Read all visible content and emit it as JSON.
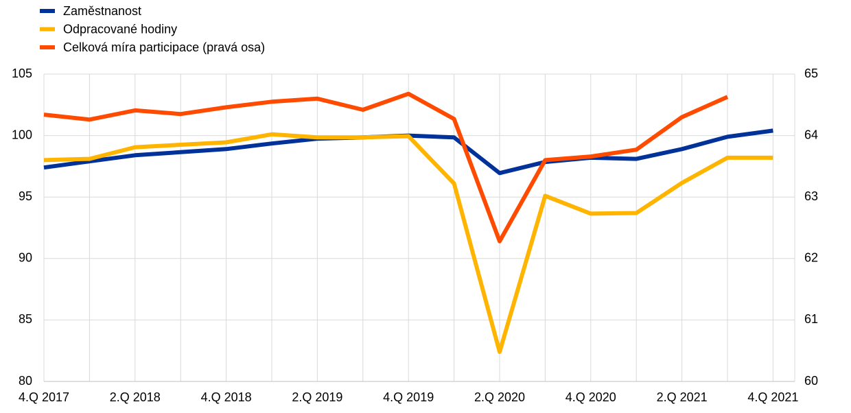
{
  "chart_data": {
    "type": "line",
    "categories": [
      "4.Q 2017",
      null,
      "2.Q 2018",
      null,
      "4.Q 2018",
      null,
      "2.Q 2019",
      null,
      "4.Q 2019",
      null,
      "2.Q 2020",
      null,
      "4.Q 2020",
      null,
      "2.Q 2021",
      null,
      "4.Q 2021"
    ],
    "series": [
      {
        "name": "Zaměstnanost",
        "color": "#003299",
        "values": [
          97.4,
          97.9,
          98.4,
          98.65,
          98.9,
          99.35,
          99.75,
          99.85,
          100.0,
          99.85,
          96.95,
          97.85,
          98.2,
          98.1,
          98.9,
          99.9,
          100.4
        ]
      },
      {
        "name": "Odpracované hodiny",
        "color": "#ffb400",
        "values": [
          98.0,
          98.1,
          99.05,
          99.25,
          99.45,
          100.1,
          99.85,
          99.85,
          99.95,
          96.1,
          82.4,
          95.1,
          93.65,
          93.7,
          96.15,
          98.2,
          98.2
        ]
      },
      {
        "name": "Celková míra participace (pravá osa)",
        "color": "#ff4b00",
        "axis": "y2",
        "values": [
          64.34,
          64.26,
          64.41,
          64.35,
          64.46,
          64.55,
          64.6,
          64.42,
          64.68,
          64.27,
          62.28,
          63.6,
          63.66,
          63.77,
          64.3,
          64.63,
          null
        ]
      }
    ],
    "ylim": [
      80,
      105
    ],
    "yticks": [
      80,
      85,
      90,
      95,
      100,
      105
    ],
    "y2lim": [
      60,
      65
    ],
    "y2ticks": [
      60,
      61,
      62,
      63,
      64,
      65
    ],
    "grid": true,
    "legend": "top-left"
  }
}
